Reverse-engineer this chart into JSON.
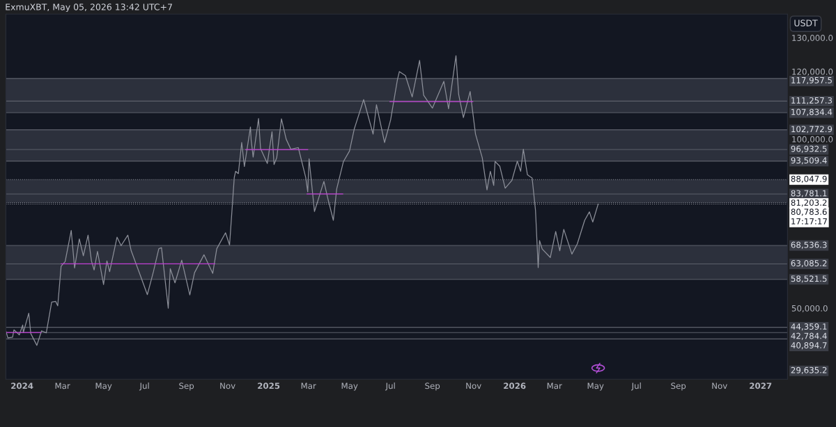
{
  "chart_data": {
    "type": "line",
    "title": "ExmuXBT, May 05, 2026 13:42 UTC+7",
    "ylabel": "USDT",
    "xlim": [
      "2023-12-08",
      "2027-02-10"
    ],
    "ylim": [
      29000,
      137000
    ],
    "xticks": [
      {
        "value": "2024-01-01",
        "label": "2024"
      },
      {
        "value": "2024-03-01",
        "label": "Mar"
      },
      {
        "value": "2024-05-01",
        "label": "May"
      },
      {
        "value": "2024-07-01",
        "label": "Jul"
      },
      {
        "value": "2024-09-01",
        "label": "Sep"
      },
      {
        "value": "2024-11-01",
        "label": "Nov"
      },
      {
        "value": "2025-01-01",
        "label": "2025"
      },
      {
        "value": "2025-03-01",
        "label": "Mar"
      },
      {
        "value": "2025-05-01",
        "label": "May"
      },
      {
        "value": "2025-07-01",
        "label": "Jul"
      },
      {
        "value": "2025-09-01",
        "label": "Sep"
      },
      {
        "value": "2025-11-01",
        "label": "Nov"
      },
      {
        "value": "2026-01-01",
        "label": "2026"
      },
      {
        "value": "2026-03-01",
        "label": "Mar"
      },
      {
        "value": "2026-05-01",
        "label": "May"
      },
      {
        "value": "2026-07-01",
        "label": "Jul"
      },
      {
        "value": "2026-09-01",
        "label": "Sep"
      },
      {
        "value": "2026-11-01",
        "label": "Nov"
      },
      {
        "value": "2027-01-01",
        "label": "2027"
      }
    ],
    "yticks": [
      {
        "value": 50000,
        "label": "50,000.0"
      },
      {
        "value": 100000,
        "label": "100,000.0"
      },
      {
        "value": 120000,
        "label": "120,000.0"
      },
      {
        "value": 130000,
        "label": "130,000.0"
      }
    ],
    "annotations": [
      "29,635.2"
    ],
    "series": [
      {
        "color": "#8c8f99",
        "x": [
          "2023-12-08",
          "2023-12-11",
          "2023-12-18",
          "2023-12-20",
          "2023-12-28",
          "2024-01-02",
          "2024-01-03",
          "2024-01-11",
          "2024-01-14",
          "2024-01-23",
          "2024-01-30",
          "2024-02-06",
          "2024-02-14",
          "2024-02-20",
          "2024-02-23",
          "2024-02-28",
          "2024-03-05",
          "2024-03-14",
          "2024-03-19",
          "2024-03-26",
          "2024-04-01",
          "2024-04-08",
          "2024-04-13",
          "2024-04-17",
          "2024-04-22",
          "2024-05-01",
          "2024-05-06",
          "2024-05-10",
          "2024-05-21",
          "2024-05-27",
          "2024-06-06",
          "2024-06-11",
          "2024-06-24",
          "2024-07-05",
          "2024-07-14",
          "2024-07-22",
          "2024-07-26",
          "2024-08-05",
          "2024-08-08",
          "2024-08-15",
          "2024-08-25",
          "2024-09-06",
          "2024-09-13",
          "2024-09-27",
          "2024-10-10",
          "2024-10-16",
          "2024-10-29",
          "2024-11-04",
          "2024-11-11",
          "2024-11-13",
          "2024-11-17",
          "2024-11-22",
          "2024-11-26",
          "2024-12-05",
          "2024-12-06",
          "2024-12-09",
          "2024-12-17",
          "2024-12-20",
          "2024-12-30",
          "2025-01-06",
          "2025-01-09",
          "2025-01-13",
          "2025-01-20",
          "2025-01-27",
          "2025-02-03",
          "2025-02-14",
          "2025-02-25",
          "2025-02-28",
          "2025-03-02",
          "2025-03-10",
          "2025-03-24",
          "2025-03-30",
          "2025-04-07",
          "2025-04-12",
          "2025-04-22",
          "2025-05-01",
          "2025-05-08",
          "2025-05-22",
          "2025-06-05",
          "2025-06-10",
          "2025-06-22",
          "2025-07-01",
          "2025-07-11",
          "2025-07-14",
          "2025-07-23",
          "2025-08-02",
          "2025-08-13",
          "2025-08-19",
          "2025-09-01",
          "2025-09-18",
          "2025-09-25",
          "2025-10-06",
          "2025-10-10",
          "2025-10-17",
          "2025-10-27",
          "2025-11-04",
          "2025-11-14",
          "2025-11-21",
          "2025-11-26",
          "2025-12-01",
          "2025-12-03",
          "2025-12-10",
          "2025-12-18",
          "2025-12-28",
          "2026-01-05",
          "2026-01-10",
          "2026-01-14",
          "2026-01-20",
          "2026-01-27",
          "2026-02-01",
          "2026-02-05",
          "2026-02-07",
          "2026-02-11",
          "2026-02-23",
          "2026-03-03",
          "2026-03-09",
          "2026-03-15",
          "2026-03-27",
          "2026-04-04",
          "2026-04-15",
          "2026-04-22",
          "2026-04-27",
          "2026-05-05"
        ],
        "values": [
          43300,
          41200,
          41400,
          43600,
          42100,
          45000,
          42800,
          48500,
          42500,
          39000,
          43300,
          42700,
          51800,
          52000,
          50700,
          62400,
          63800,
          73000,
          61900,
          70500,
          65500,
          71600,
          64000,
          61300,
          66800,
          57000,
          64000,
          60800,
          71000,
          68500,
          71600,
          67000,
          60000,
          54000,
          60800,
          67600,
          67900,
          50000,
          61700,
          57500,
          64200,
          53900,
          60500,
          65800,
          60300,
          67600,
          72300,
          68700,
          88700,
          90500,
          89800,
          99000,
          91900,
          103600,
          99800,
          94700,
          106100,
          97200,
          92800,
          102200,
          92500,
          94500,
          106000,
          100000,
          97000,
          97500,
          88700,
          84400,
          94200,
          78600,
          87500,
          82300,
          76000,
          85300,
          93400,
          96500,
          103000,
          111700,
          101500,
          110200,
          99000,
          105700,
          117500,
          120000,
          118800,
          112500,
          123300,
          113000,
          109200,
          117100,
          109000,
          124700,
          113200,
          106400,
          114100,
          101500,
          94500,
          85000,
          90500,
          86300,
          93400,
          92000,
          85500,
          87800,
          93500,
          90500,
          97000,
          89500,
          88500,
          79000,
          62000,
          70000,
          67500,
          65000,
          72700,
          67000,
          73300,
          66000,
          69000,
          76000,
          78500,
          75500,
          80800
        ]
      },
      {
        "color": "#c23fd6",
        "x": [
          "2023-12-08",
          "2024-01-29"
        ],
        "values": [
          42800,
          42800
        ]
      },
      {
        "color": "#c23fd6",
        "x": [
          "2024-02-28",
          "2024-10-13"
        ],
        "values": [
          63100,
          63100
        ]
      },
      {
        "color": "#c23fd6",
        "x": [
          "2024-11-28",
          "2025-02-28"
        ],
        "values": [
          96900,
          96900
        ]
      },
      {
        "color": "#c23fd6",
        "x": [
          "2025-02-27",
          "2025-04-21"
        ],
        "values": [
          83800,
          83800
        ]
      },
      {
        "color": "#c23fd6",
        "x": [
          "2025-06-30",
          "2025-10-31"
        ],
        "values": [
          111100,
          111100
        ]
      }
    ],
    "bands": [
      {
        "axis": "y",
        "from": 107834.4,
        "to": 117957.5,
        "color": "#363a45"
      },
      {
        "axis": "y",
        "from": 93509.4,
        "to": 102772.9,
        "color": "#363a45"
      },
      {
        "axis": "y",
        "from": 81203.2,
        "to": 88047.9,
        "color": "#363a45"
      },
      {
        "axis": "y",
        "from": 58521.5,
        "to": 68536.3,
        "color": "#363a45"
      }
    ],
    "ref_lines": [
      {
        "axis": "y",
        "value": 117957.5,
        "label": "117,957.5",
        "color": "#5d606b"
      },
      {
        "axis": "y",
        "value": 111257.3,
        "label": "111,257.3",
        "color": "#5d606b"
      },
      {
        "axis": "y",
        "value": 107834.4,
        "label": "107,834.4",
        "color": "#5d606b"
      },
      {
        "axis": "y",
        "value": 102772.9,
        "label": "102,772.9",
        "color": "#5d606b"
      },
      {
        "axis": "y",
        "value": 96932.5,
        "label": "96,932.5",
        "color": "#5d606b"
      },
      {
        "axis": "y",
        "value": 93509.4,
        "label": "93,509.4",
        "color": "#5d606b"
      },
      {
        "axis": "y",
        "value": 88047.9,
        "label": "88,047.9",
        "color": "#8a8d96",
        "line_style": "dotted"
      },
      {
        "axis": "y",
        "value": 83781.1,
        "label": "83,781.1",
        "color": "#5d606b"
      },
      {
        "axis": "y",
        "value": 81203.2,
        "label": "81,203.2",
        "color": "#8a8d96",
        "line_style": "dotted"
      },
      {
        "axis": "y",
        "value": 80783.6,
        "label": "80,783.6\n17:17:17",
        "color": "#8a8d96",
        "line_style": "dotted"
      },
      {
        "axis": "y",
        "value": 68536.3,
        "label": "68,536.3",
        "color": "#5d606b"
      },
      {
        "axis": "y",
        "value": 63085.2,
        "label": "63,085.2",
        "color": "#5d606b"
      },
      {
        "axis": "y",
        "value": 58521.5,
        "label": "58,521.5",
        "color": "#5d606b"
      },
      {
        "axis": "y",
        "value": 44359.1,
        "label": "44,359.1",
        "color": "#5d606b"
      },
      {
        "axis": "y",
        "value": 42784.4,
        "label": "42,784.4",
        "color": "#5d606b"
      },
      {
        "axis": "y",
        "value": 40894.7,
        "label": "40,894.7",
        "color": "#5d606b"
      }
    ]
  }
}
